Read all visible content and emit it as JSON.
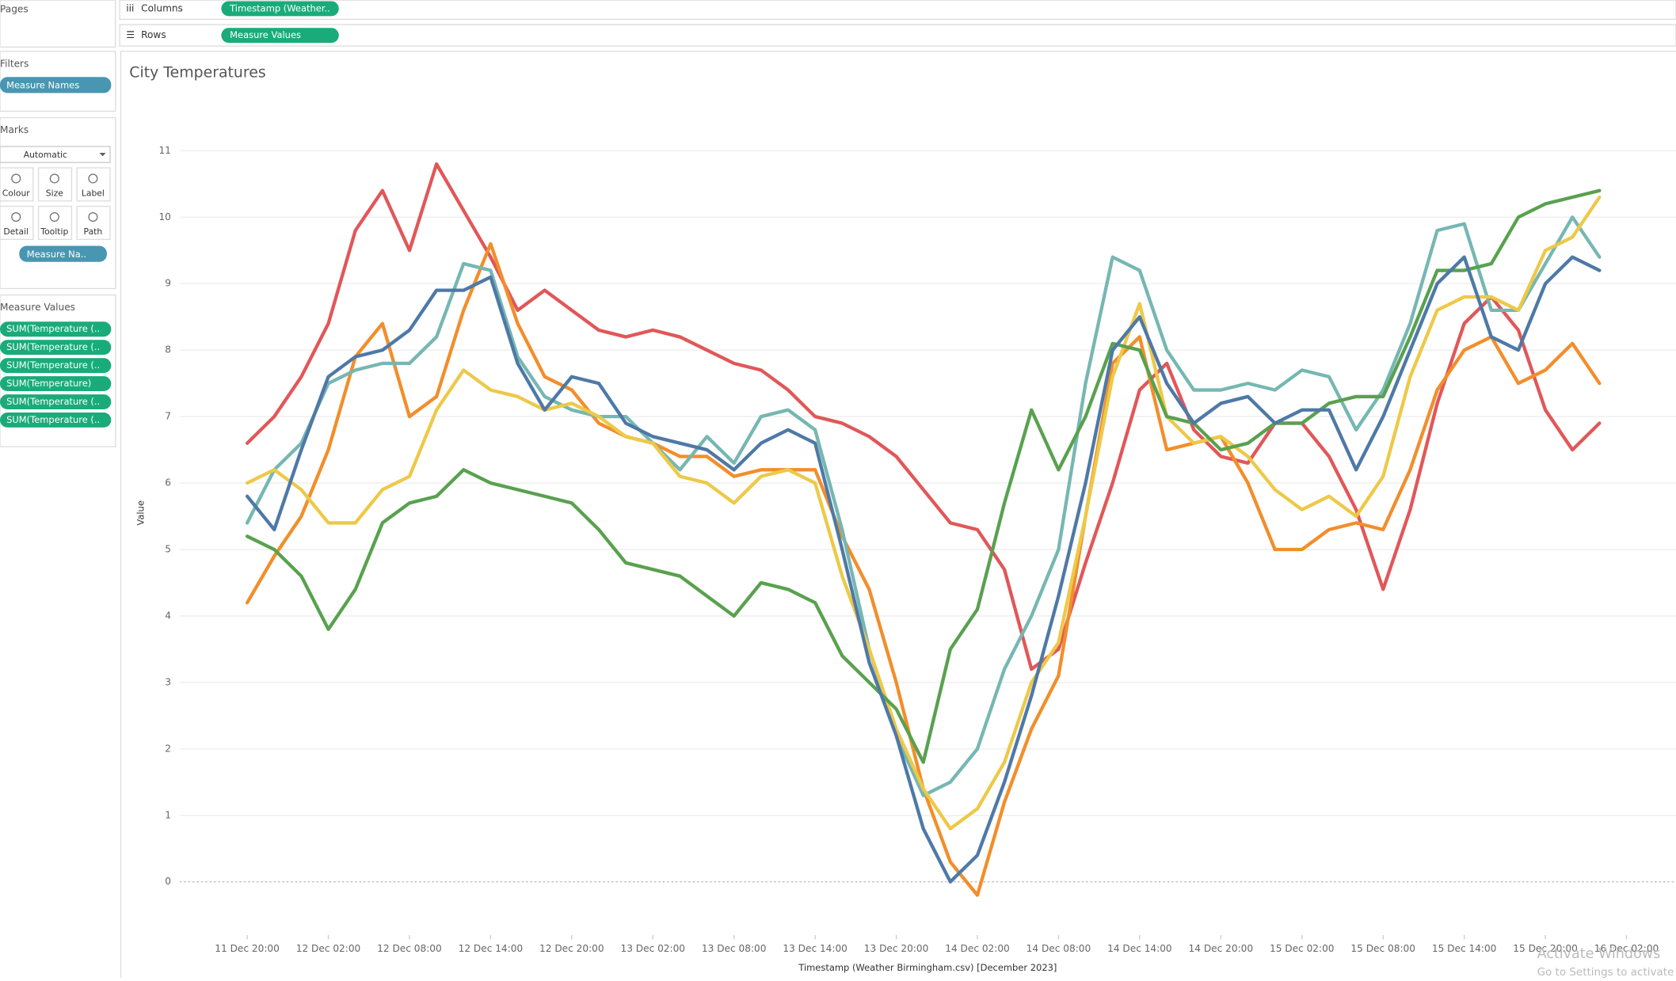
{
  "shelves": {
    "pages": "Pages",
    "columns": "Columns",
    "columns_pill": "Timestamp (Weather..",
    "rows": "Rows",
    "rows_pill": "Measure Values"
  },
  "filters": {
    "title": "Filters",
    "pill": "Measure Names"
  },
  "marks": {
    "title": "Marks",
    "type": "Automatic",
    "buttons": [
      "Colour",
      "Size",
      "Label",
      "Detail",
      "Tooltip",
      "Path"
    ],
    "colour_pill": "Measure Na.."
  },
  "measure_values": {
    "title": "Measure Values",
    "pills": [
      "SUM(Temperature (..",
      "SUM(Temperature (..",
      "SUM(Temperature (..",
      "SUM(Temperature)",
      "SUM(Temperature (..",
      "SUM(Temperature (.."
    ]
  },
  "watermark": {
    "title": "Activate Windows",
    "text": "Go to Settings to activate W"
  },
  "chart_data": {
    "type": "line",
    "title": "City Temperatures",
    "y_label": "Value",
    "x_label": "Timestamp (Weather Birmingham.csv) [December 2023]",
    "x": [
      "11 Dec 20:00",
      "11 Dec 22:00",
      "12 Dec 00:00",
      "12 Dec 02:00",
      "12 Dec 04:00",
      "12 Dec 06:00",
      "12 Dec 08:00",
      "12 Dec 10:00",
      "12 Dec 12:00",
      "12 Dec 14:00",
      "12 Dec 16:00",
      "12 Dec 18:00",
      "12 Dec 20:00",
      "12 Dec 22:00",
      "13 Dec 00:00",
      "13 Dec 02:00",
      "13 Dec 04:00",
      "13 Dec 06:00",
      "13 Dec 08:00",
      "13 Dec 10:00",
      "13 Dec 12:00",
      "13 Dec 14:00",
      "13 Dec 16:00",
      "13 Dec 18:00",
      "13 Dec 20:00",
      "13 Dec 22:00",
      "14 Dec 00:00",
      "14 Dec 02:00",
      "14 Dec 04:00",
      "14 Dec 06:00",
      "14 Dec 08:00",
      "14 Dec 10:00",
      "14 Dec 12:00",
      "14 Dec 14:00",
      "14 Dec 16:00",
      "14 Dec 18:00",
      "14 Dec 20:00",
      "14 Dec 22:00",
      "15 Dec 00:00",
      "15 Dec 02:00",
      "15 Dec 04:00",
      "15 Dec 06:00",
      "15 Dec 08:00",
      "15 Dec 10:00",
      "15 Dec 12:00",
      "15 Dec 14:00",
      "15 Dec 16:00",
      "15 Dec 18:00",
      "15 Dec 20:00",
      "15 Dec 22:00",
      "16 Dec 00:00"
    ],
    "xlim": [
      "11 Dec 15:00",
      "16 Dec 04:00"
    ],
    "xticks": [
      "11 Dec 20:00",
      "12 Dec 02:00",
      "12 Dec 08:00",
      "12 Dec 14:00",
      "12 Dec 20:00",
      "13 Dec 02:00",
      "13 Dec 08:00",
      "13 Dec 14:00",
      "13 Dec 20:00",
      "14 Dec 02:00",
      "14 Dec 08:00",
      "14 Dec 14:00",
      "14 Dec 20:00",
      "15 Dec 02:00",
      "15 Dec 08:00",
      "15 Dec 14:00",
      "15 Dec 20:00",
      "16 Dec 02:00"
    ],
    "ylim": [
      -0.8,
      11.9
    ],
    "yticks": [
      0,
      1,
      2,
      3,
      4,
      5,
      6,
      7,
      8,
      9,
      10,
      11
    ],
    "grid": true,
    "series": [
      {
        "color": "#e15759",
        "values": [
          6.6,
          7.0,
          7.6,
          8.4,
          9.8,
          10.4,
          9.5,
          10.8,
          10.1,
          9.4,
          8.6,
          8.9,
          8.6,
          8.3,
          8.2,
          8.3,
          8.2,
          8.0,
          7.8,
          7.7,
          7.4,
          7.0,
          6.9,
          6.7,
          6.4,
          5.9,
          5.4,
          5.3,
          4.7,
          3.2,
          3.5,
          4.8,
          6.0,
          7.4,
          7.8,
          6.8,
          6.4,
          6.3,
          6.9,
          6.9,
          6.4,
          5.6,
          4.4,
          5.6,
          7.2,
          8.4,
          8.8,
          8.3,
          7.1,
          6.5,
          6.9
        ]
      },
      {
        "color": "#f28e2b",
        "values": [
          4.2,
          4.9,
          5.5,
          6.5,
          7.9,
          8.4,
          7.0,
          7.3,
          8.6,
          9.6,
          8.4,
          7.6,
          7.4,
          6.9,
          6.7,
          6.6,
          6.4,
          6.4,
          6.1,
          6.2,
          6.2,
          6.2,
          5.2,
          4.4,
          3.0,
          1.4,
          0.3,
          -0.2,
          1.2,
          2.3,
          3.1,
          5.5,
          7.8,
          8.2,
          6.5,
          6.6,
          6.7,
          6.0,
          5.0,
          5.0,
          5.3,
          5.4,
          5.3,
          6.2,
          7.4,
          8.0,
          8.2,
          7.5,
          7.7,
          8.1,
          7.5
        ]
      },
      {
        "color": "#76b7b2",
        "values": [
          5.4,
          6.2,
          6.6,
          7.5,
          7.7,
          7.8,
          7.8,
          8.2,
          9.3,
          9.2,
          7.9,
          7.3,
          7.1,
          7.0,
          7.0,
          6.6,
          6.2,
          6.7,
          6.3,
          7.0,
          7.1,
          6.8,
          5.3,
          3.5,
          2.2,
          1.3,
          1.5,
          2.0,
          3.2,
          4.0,
          5.0,
          7.5,
          9.4,
          9.2,
          8.0,
          7.4,
          7.4,
          7.5,
          7.4,
          7.7,
          7.6,
          6.8,
          7.4,
          8.4,
          9.8,
          9.9,
          8.6,
          8.6,
          9.3,
          10.0,
          9.4
        ]
      },
      {
        "color": "#edc948",
        "values": [
          6.0,
          6.2,
          5.9,
          5.4,
          5.4,
          5.9,
          6.1,
          7.1,
          7.7,
          7.4,
          7.3,
          7.1,
          7.2,
          7.0,
          6.7,
          6.6,
          6.1,
          6.0,
          5.7,
          6.1,
          6.2,
          6.0,
          4.6,
          3.5,
          2.3,
          1.4,
          0.8,
          1.1,
          1.8,
          3.0,
          3.6,
          5.5,
          7.6,
          8.7,
          7.0,
          6.6,
          6.7,
          6.4,
          5.9,
          5.6,
          5.8,
          5.5,
          6.1,
          7.6,
          8.6,
          8.8,
          8.8,
          8.6,
          9.5,
          9.7,
          10.3
        ]
      },
      {
        "color": "#59a14f",
        "values": [
          5.2,
          5.0,
          4.6,
          3.8,
          4.4,
          5.4,
          5.7,
          5.8,
          6.2,
          6.0,
          5.9,
          5.8,
          5.7,
          5.3,
          4.8,
          4.7,
          4.6,
          4.3,
          4.0,
          4.5,
          4.4,
          4.2,
          3.4,
          3.0,
          2.6,
          1.8,
          3.5,
          4.1,
          5.7,
          7.1,
          6.2,
          7.0,
          8.1,
          8.0,
          7.0,
          6.9,
          6.5,
          6.6,
          6.9,
          6.9,
          7.2,
          7.3,
          7.3,
          8.2,
          9.2,
          9.2,
          9.3,
          10.0,
          10.2,
          10.3,
          10.4
        ]
      },
      {
        "color": "#4e79a7",
        "values": [
          5.8,
          5.3,
          6.5,
          7.6,
          7.9,
          8.0,
          8.3,
          8.9,
          8.9,
          9.1,
          7.8,
          7.1,
          7.6,
          7.5,
          6.9,
          6.7,
          6.6,
          6.5,
          6.2,
          6.6,
          6.8,
          6.6,
          5.0,
          3.3,
          2.2,
          0.8,
          0.0,
          0.4,
          1.5,
          2.8,
          4.3,
          6.0,
          8.0,
          8.5,
          7.5,
          6.9,
          7.2,
          7.3,
          6.9,
          7.1,
          7.1,
          6.2,
          7.0,
          8.0,
          9.0,
          9.4,
          8.2,
          8.0,
          9.0,
          9.4,
          9.2
        ]
      }
    ]
  }
}
